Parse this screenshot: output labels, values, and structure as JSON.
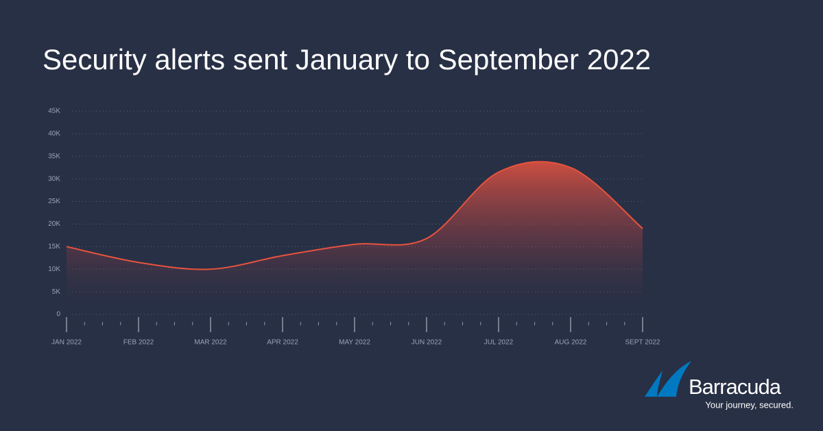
{
  "chart_data": {
    "type": "area",
    "title": "Security alerts sent January to September 2022",
    "categories": [
      "JAN 2022",
      "FEB 2022",
      "MAR 2022",
      "APR 2022",
      "MAY 2022",
      "JUN 2022",
      "JUL 2022",
      "AUG 2022",
      "SEPT 2022"
    ],
    "values": [
      15000,
      11500,
      10000,
      13000,
      15500,
      16800,
      31500,
      32500,
      19000
    ],
    "color": "#e8533f",
    "ylim": [
      0,
      45000
    ],
    "yticks": [
      0,
      {
        "value": 5000,
        "label": "5K"
      },
      {
        "value": 10000,
        "label": "10K"
      },
      {
        "value": 15000,
        "label": "15K"
      },
      {
        "value": 20000,
        "label": "20K"
      },
      {
        "value": 25000,
        "label": "25K"
      },
      {
        "value": 30000,
        "label": "30K"
      },
      {
        "value": 35000,
        "label": "35K"
      },
      {
        "value": 40000,
        "label": "40K"
      },
      {
        "value": 45000,
        "label": "45K"
      }
    ],
    "grid": true
  },
  "logo": {
    "name": "Barracuda",
    "tagline": "Your journey, secured."
  }
}
